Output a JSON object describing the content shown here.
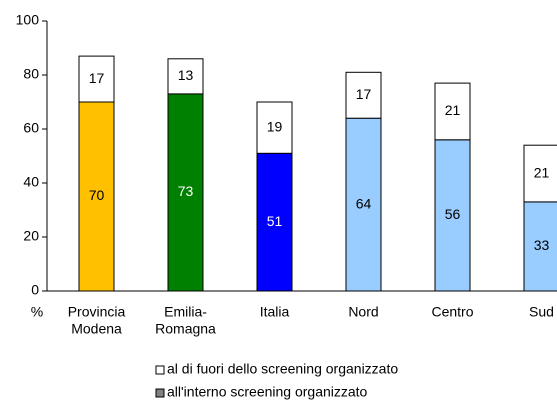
{
  "chart_data": {
    "type": "bar",
    "stacked": true,
    "categories": [
      [
        "Provincia",
        "Modena"
      ],
      [
        "Emilia-",
        "Romagna"
      ],
      [
        "Italia"
      ],
      [
        "Nord"
      ],
      [
        "Centro"
      ],
      [
        "Sud"
      ]
    ],
    "series": [
      {
        "name": "all'interno screening organizzato",
        "color": "#808080",
        "bar_colors": [
          "#FFC000",
          "#008000",
          "#0000FF",
          "#99CCFF",
          "#99CCFF",
          "#99CCFF"
        ],
        "values": [
          70,
          73,
          51,
          64,
          56,
          33
        ]
      },
      {
        "name": "al di fuori dello screening organizzato",
        "color": "#FFFFFF",
        "values": [
          17,
          13,
          19,
          17,
          21,
          21
        ]
      }
    ],
    "ylabel": "%",
    "ylim": [
      0,
      100
    ],
    "yticks": [
      0,
      20,
      40,
      60,
      80,
      100
    ]
  }
}
